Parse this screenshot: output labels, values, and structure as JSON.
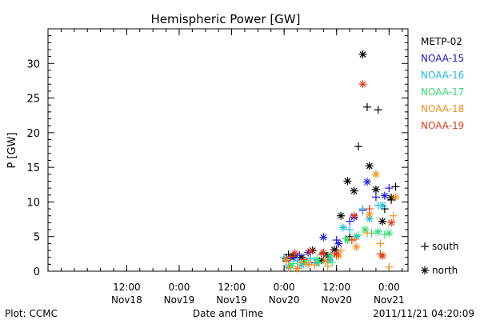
{
  "chart_data": {
    "type": "scatter",
    "title": "Hemispheric Power [GW]",
    "xlabel": "Date and Time",
    "ylabel": "P [GW]",
    "ylim": [
      0,
      35
    ],
    "xlim": [
      "2011-11-17T18:00",
      "2011-11-21T04:20"
    ],
    "x_ticks": [
      {
        "at": "2011-11-18T12:00",
        "line1": "12:00",
        "line2": "Nov18"
      },
      {
        "at": "2011-11-19T00:00",
        "line1": "0:00",
        "line2": "Nov19"
      },
      {
        "at": "2011-11-19T12:00",
        "line1": "12:00",
        "line2": "Nov19"
      },
      {
        "at": "2011-11-20T00:00",
        "line1": "0:00",
        "line2": "Nov20"
      },
      {
        "at": "2011-11-20T12:00",
        "line1": "12:00",
        "line2": "Nov20"
      },
      {
        "at": "2011-11-21T00:00",
        "line1": "0:00",
        "line2": "Nov21"
      }
    ],
    "y_ticks": [
      0,
      5,
      10,
      15,
      20,
      25,
      30
    ],
    "grid": false,
    "legend_position": "right",
    "marker_legend": [
      {
        "marker": "plus",
        "label": "south"
      },
      {
        "marker": "star",
        "label": "north"
      }
    ],
    "series": [
      {
        "name": "METP-02",
        "color": "#000000",
        "south": [
          [
            "2011-11-20T01:00",
            2.4
          ],
          [
            "2011-11-20T03:00",
            2.0
          ],
          [
            "2011-11-20T06:00",
            1.8
          ],
          [
            "2011-11-20T09:00",
            2.6
          ],
          [
            "2011-11-20T12:00",
            3.0
          ],
          [
            "2011-11-20T15:00",
            5.0
          ],
          [
            "2011-11-20T17:00",
            18.0
          ],
          [
            "2011-11-20T19:00",
            23.7
          ],
          [
            "2011-11-20T21:30",
            23.3
          ],
          [
            "2011-11-20T23:00",
            9.0
          ],
          [
            "2011-11-21T00:30",
            10.3
          ],
          [
            "2011-11-21T01:30",
            12.2
          ]
        ],
        "north": [
          [
            "2011-11-20T00:30",
            1.8
          ],
          [
            "2011-11-20T02:00",
            2.2
          ],
          [
            "2011-11-20T04:00",
            2.0
          ],
          [
            "2011-11-20T06:30",
            3.0
          ],
          [
            "2011-11-20T08:30",
            1.6
          ],
          [
            "2011-11-20T10:00",
            2.2
          ],
          [
            "2011-11-20T11:30",
            3.1
          ],
          [
            "2011-11-20T13:00",
            8.0
          ],
          [
            "2011-11-20T14:30",
            13.0
          ],
          [
            "2011-11-20T16:00",
            11.6
          ],
          [
            "2011-11-20T18:00",
            31.3
          ],
          [
            "2011-11-20T19:30",
            15.2
          ],
          [
            "2011-11-20T21:00",
            11.8
          ],
          [
            "2011-11-20T22:30",
            7.2
          ],
          [
            "2011-11-21T00:30",
            10.6
          ]
        ]
      },
      {
        "name": "NOAA-15",
        "color": "#1a1ad6",
        "south": [
          [
            "2011-11-20T00:30",
            1.5
          ],
          [
            "2011-11-20T03:30",
            2.3
          ],
          [
            "2011-11-20T07:00",
            1.2
          ],
          [
            "2011-11-20T12:00",
            4.5
          ],
          [
            "2011-11-20T15:00",
            7.2
          ],
          [
            "2011-11-20T18:00",
            8.8
          ],
          [
            "2011-11-20T21:00",
            10.7
          ],
          [
            "2011-11-21T00:00",
            12.0
          ]
        ],
        "north": [
          [
            "2011-11-20T02:00",
            1.9
          ],
          [
            "2011-11-20T05:30",
            2.7
          ],
          [
            "2011-11-20T09:00",
            4.9
          ],
          [
            "2011-11-20T12:30",
            4.0
          ],
          [
            "2011-11-20T16:00",
            7.8
          ],
          [
            "2011-11-20T19:00",
            12.9
          ],
          [
            "2011-11-20T23:00",
            10.9
          ]
        ]
      },
      {
        "name": "NOAA-16",
        "color": "#20bde0",
        "south": [
          [
            "2011-11-20T00:00",
            2.0
          ],
          [
            "2011-11-20T03:00",
            1.5
          ],
          [
            "2011-11-20T06:00",
            1.8
          ],
          [
            "2011-11-20T09:30",
            1.4
          ],
          [
            "2011-11-20T12:00",
            2.2
          ],
          [
            "2011-11-20T15:00",
            6.0
          ],
          [
            "2011-11-20T18:00",
            9.0
          ],
          [
            "2011-11-20T21:30",
            9.5
          ]
        ],
        "north": [
          [
            "2011-11-20T01:00",
            0.6
          ],
          [
            "2011-11-20T04:00",
            0.9
          ],
          [
            "2011-11-20T07:30",
            1.2
          ],
          [
            "2011-11-20T10:30",
            1.6
          ],
          [
            "2011-11-20T13:30",
            6.3
          ],
          [
            "2011-11-20T16:30",
            5.0
          ],
          [
            "2011-11-20T19:30",
            7.6
          ],
          [
            "2011-11-20T22:30",
            9.5
          ]
        ]
      },
      {
        "name": "NOAA-17",
        "color": "#33dd77",
        "south": [
          [
            "2011-11-20T02:00",
            1.1
          ],
          [
            "2011-11-20T05:00",
            1.5
          ],
          [
            "2011-11-20T08:00",
            1.2
          ],
          [
            "2011-11-20T11:00",
            1.3
          ],
          [
            "2011-11-20T14:00",
            4.7
          ],
          [
            "2011-11-20T17:00",
            5.2
          ],
          [
            "2011-11-20T20:00",
            5.5
          ],
          [
            "2011-11-20T23:00",
            5.3
          ]
        ],
        "north": [
          [
            "2011-11-20T01:30",
            0.8
          ],
          [
            "2011-11-20T04:30",
            1.3
          ],
          [
            "2011-11-20T07:30",
            1.7
          ],
          [
            "2011-11-20T10:30",
            2.2
          ],
          [
            "2011-11-20T14:30",
            4.5
          ],
          [
            "2011-11-20T18:30",
            6.0
          ],
          [
            "2011-11-20T21:30",
            5.7
          ],
          [
            "2011-11-21T00:00",
            5.5
          ]
        ]
      },
      {
        "name": "NOAA-18",
        "color": "#f0921e",
        "south": [
          [
            "2011-11-20T01:00",
            0.5
          ],
          [
            "2011-11-20T04:00",
            1.3
          ],
          [
            "2011-11-20T07:00",
            0.9
          ],
          [
            "2011-11-20T10:00",
            0.7
          ],
          [
            "2011-11-20T13:00",
            3.0
          ],
          [
            "2011-11-20T16:00",
            4.6
          ],
          [
            "2011-11-20T19:00",
            5.5
          ],
          [
            "2011-11-20T22:00",
            4.0
          ],
          [
            "2011-11-21T00:00",
            0.6
          ],
          [
            "2011-11-21T01:00",
            8.0
          ]
        ],
        "north": [
          [
            "2011-11-20T00:30",
            1.6
          ],
          [
            "2011-11-20T03:00",
            0.4
          ],
          [
            "2011-11-20T05:30",
            1.0
          ],
          [
            "2011-11-20T09:30",
            1.5
          ],
          [
            "2011-11-20T12:30",
            2.2
          ],
          [
            "2011-11-20T16:30",
            3.5
          ],
          [
            "2011-11-20T19:30",
            8.2
          ],
          [
            "2011-11-20T21:00",
            14.0
          ],
          [
            "2011-11-21T01:30",
            10.7
          ]
        ]
      },
      {
        "name": "NOAA-19",
        "color": "#e03c1e",
        "south": [
          [
            "2011-11-20T01:30",
            2.1
          ],
          [
            "2011-11-20T04:30",
            1.7
          ],
          [
            "2011-11-20T08:30",
            2.4
          ],
          [
            "2011-11-20T11:30",
            2.5
          ],
          [
            "2011-11-20T15:30",
            4.5
          ],
          [
            "2011-11-20T19:30",
            9.0
          ],
          [
            "2011-11-20T22:00",
            2.5
          ]
        ],
        "north": [
          [
            "2011-11-20T02:30",
            2.6
          ],
          [
            "2011-11-20T06:00",
            2.9
          ],
          [
            "2011-11-20T09:00",
            2.7
          ],
          [
            "2011-11-20T12:00",
            2.5
          ],
          [
            "2011-11-20T16:00",
            8.0
          ],
          [
            "2011-11-20T18:00",
            27.0
          ],
          [
            "2011-11-20T22:30",
            2.2
          ],
          [
            "2011-11-21T00:30",
            7.0
          ]
        ]
      }
    ]
  },
  "footer": {
    "left": "Plot: CCMC",
    "right": "2011/11/21 04:20:09"
  }
}
